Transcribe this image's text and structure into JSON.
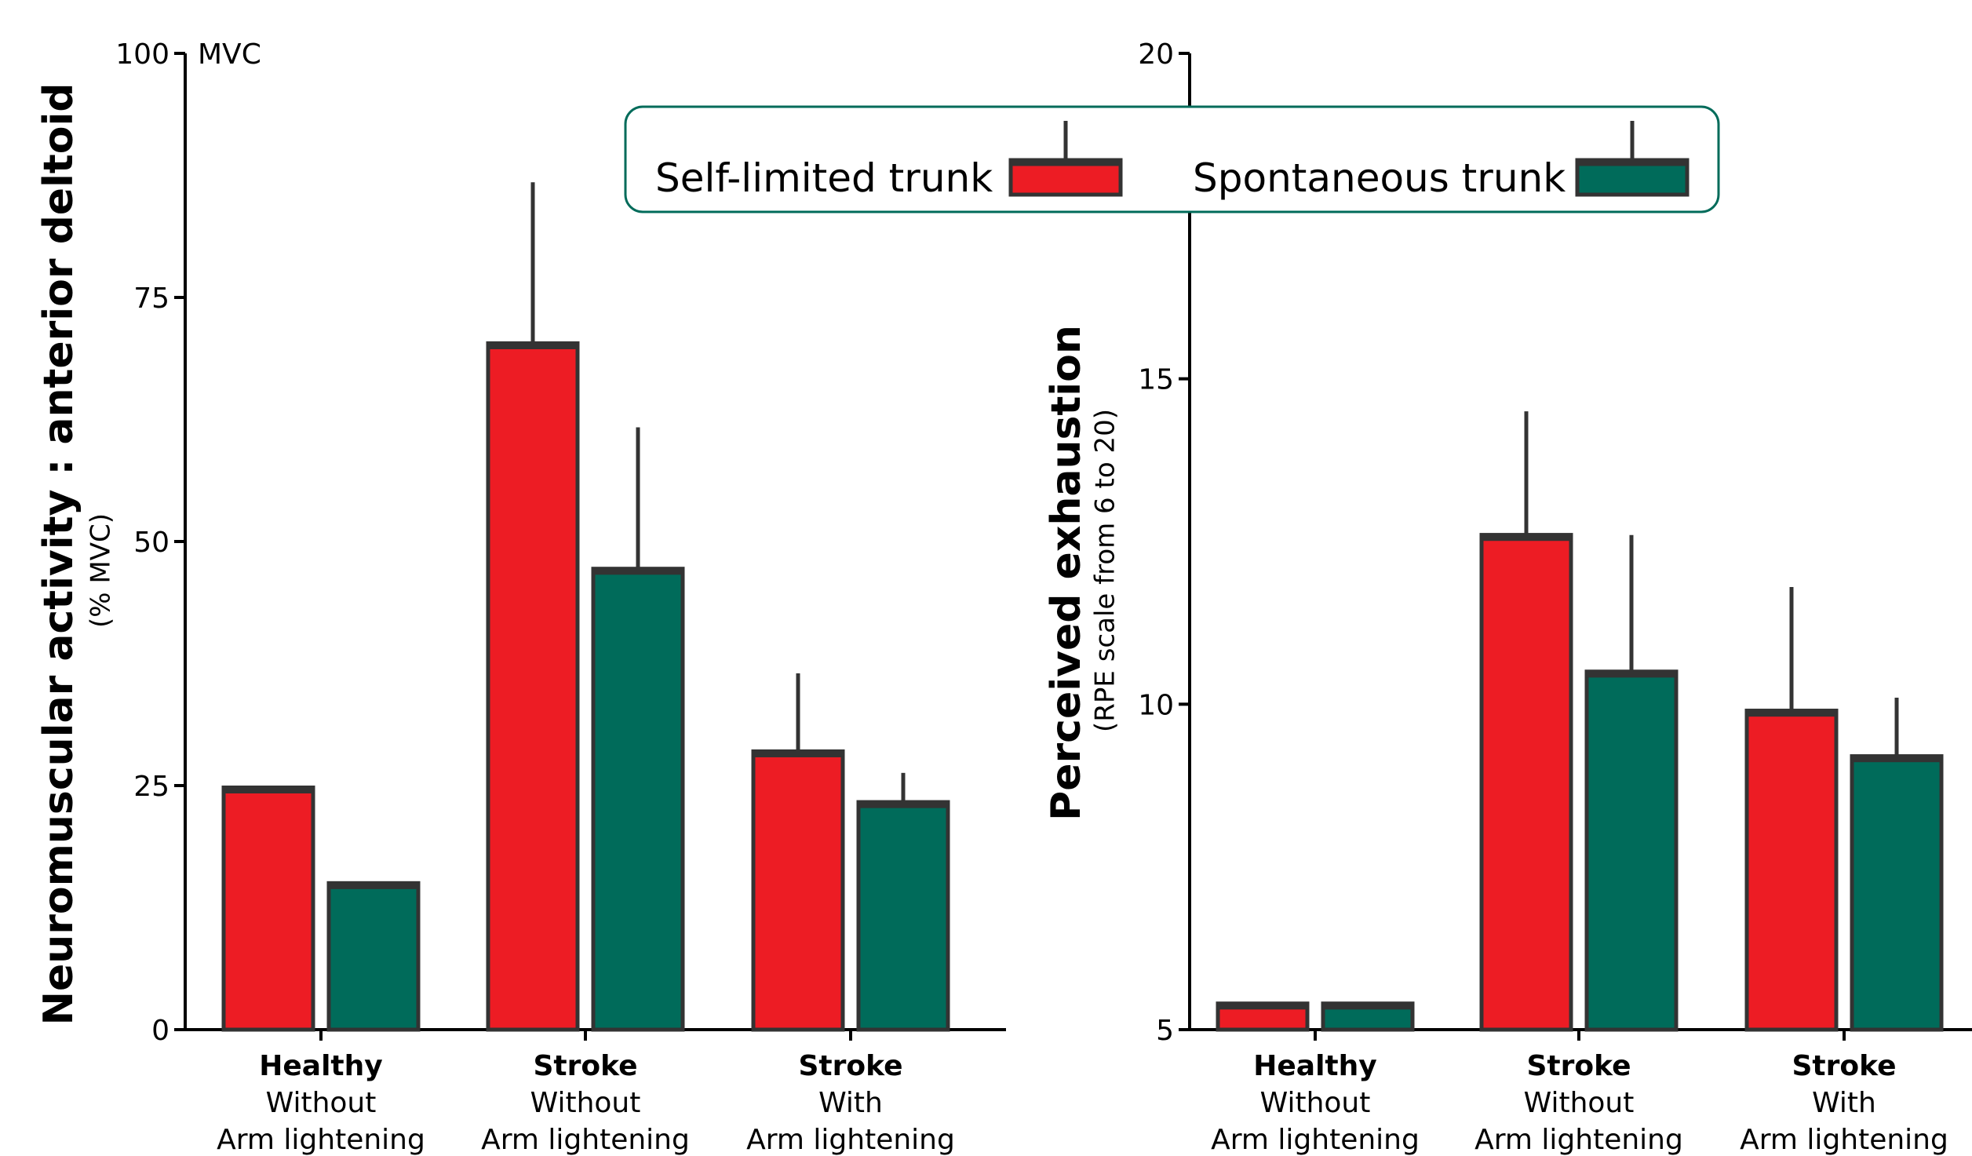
{
  "colors": {
    "self_limited": "#ED1C24",
    "spontaneous": "#006B5A",
    "outline": "#333333",
    "legend_border": "#006B5A"
  },
  "legend": {
    "items": [
      {
        "label": "Self-limited trunk",
        "color_key": "self_limited"
      },
      {
        "label": "Spontaneous trunk",
        "color_key": "spontaneous"
      }
    ]
  },
  "chart_data": [
    {
      "type": "bar",
      "ylabel": "Neuromuscular activity : anterior deltoid",
      "ylabel_sub": "(% MVC)",
      "ylim": [
        0,
        100
      ],
      "yticks": [
        "0",
        "25",
        "50",
        "75",
        "100"
      ],
      "ytick_values": [
        0,
        25,
        50,
        75,
        100
      ],
      "top_tick_annotation": "MVC",
      "categories": [
        {
          "group": "Healthy",
          "line2": "Without",
          "line3": "Arm lightening"
        },
        {
          "group": "Stroke",
          "line2": "Without",
          "line3": "Arm lightening"
        },
        {
          "group": "Stroke",
          "line2": "With",
          "line3": "Arm lightening"
        }
      ],
      "series": [
        {
          "name": "Self-limited trunk",
          "values": [
            24.8,
            70.3,
            28.5
          ],
          "errors": [
            null,
            16.5,
            8.0
          ]
        },
        {
          "name": "Spontaneous trunk",
          "values": [
            15.0,
            47.2,
            23.3
          ],
          "errors": [
            null,
            14.5,
            3.0
          ]
        }
      ]
    },
    {
      "type": "bar",
      "ylabel": "Perceived exhaustion",
      "ylabel_sub": "(RPE scale from 6 to 20)",
      "ylim": [
        5,
        20
      ],
      "yticks": [
        "5",
        "10",
        "15",
        "20"
      ],
      "ytick_values": [
        5,
        10,
        15,
        20
      ],
      "categories": [
        {
          "group": "Healthy",
          "line2": "Without",
          "line3": "Arm lightening"
        },
        {
          "group": "Stroke",
          "line2": "Without",
          "line3": "Arm lightening"
        },
        {
          "group": "Stroke",
          "line2": "With",
          "line3": "Arm lightening"
        }
      ],
      "series": [
        {
          "name": "Self-limited trunk",
          "values": [
            5.4,
            12.6,
            9.9
          ],
          "errors": [
            null,
            1.9,
            1.9
          ]
        },
        {
          "name": "Spontaneous trunk",
          "values": [
            5.4,
            10.5,
            9.2
          ],
          "errors": [
            null,
            2.1,
            0.9
          ]
        }
      ]
    }
  ]
}
